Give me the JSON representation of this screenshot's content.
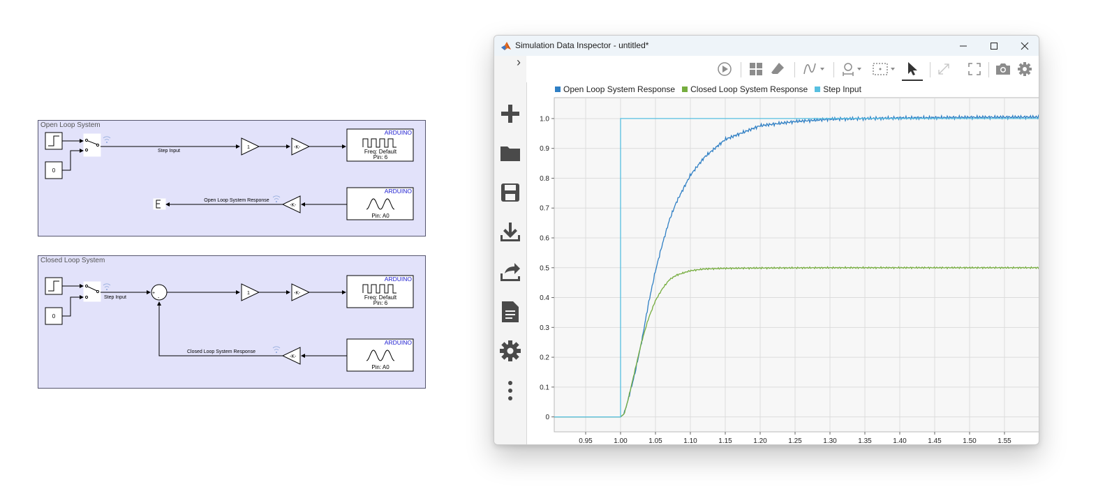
{
  "model": {
    "open_loop": {
      "title": "Open Loop System",
      "constant_value": "0",
      "signal_label": "Step Input",
      "gain1": "1",
      "gain2": "-K-",
      "out_block": {
        "brand": "ARDUINO",
        "line1": "Freq: Default",
        "line2": "Pin: 6"
      },
      "in_block": {
        "brand": "ARDUINO",
        "line2": "Pin: A0"
      },
      "feedback_gain": "-K-",
      "feedback_label": "Open Loop System Response"
    },
    "closed_loop": {
      "title": "Closed Loop System",
      "constant_value": "0",
      "signal_label": "Step Input",
      "sum_plus": "+",
      "sum_minus": "-",
      "gain1": "1",
      "gain2": "-K-",
      "out_block": {
        "brand": "ARDUINO",
        "line1": "Freq: Default",
        "line2": "Pin: 6"
      },
      "in_block": {
        "brand": "ARDUINO",
        "line2": "Pin: A0"
      },
      "feedback_gain": "-K-",
      "feedback_label": "Closed Loop System Response"
    }
  },
  "sdi": {
    "window_title": "Simulation Data Inspector - untitled*",
    "collapse_glyph": "›",
    "toolbar_icons": [
      "play-icon",
      "layout-grid-icon",
      "eraser-icon",
      "signal-wave-icon",
      "zoom-icon",
      "fit-to-view-icon",
      "cursor-icon",
      "expand-icon",
      "fullscreen-icon",
      "camera-icon",
      "gear-icon"
    ],
    "side_icons": [
      "add-icon",
      "folder-icon",
      "save-icon",
      "download-icon",
      "share-icon",
      "document-icon",
      "settings-icon",
      "more-icon"
    ],
    "colors": {
      "open_loop": "#2f7fc4",
      "closed_loop": "#76ad3f",
      "step": "#57bfe0"
    }
  },
  "chart_data": {
    "type": "line",
    "title": "",
    "xlabel": "",
    "ylabel": "",
    "xlim": [
      0.905,
      1.6
    ],
    "ylim": [
      -0.05,
      1.07
    ],
    "xticks": [
      "0.95",
      "1.00",
      "1.05",
      "1.10",
      "1.15",
      "1.20",
      "1.25",
      "1.30",
      "1.35",
      "1.40",
      "1.45",
      "1.50",
      "1.55"
    ],
    "yticks": [
      "0",
      "0.1",
      "0.2",
      "0.3",
      "0.4",
      "0.5",
      "0.6",
      "0.7",
      "0.8",
      "0.9",
      "1.0"
    ],
    "grid": true,
    "legend": "top",
    "series": [
      {
        "name": "Open Loop System Response",
        "color": "#2f7fc4",
        "x": [
          0.905,
          1.0,
          1.005,
          1.01,
          1.02,
          1.03,
          1.04,
          1.05,
          1.06,
          1.07,
          1.08,
          1.1,
          1.12,
          1.15,
          1.2,
          1.25,
          1.3,
          1.4,
          1.5,
          1.6
        ],
        "y": [
          0,
          0,
          0.01,
          0.05,
          0.14,
          0.25,
          0.38,
          0.49,
          0.58,
          0.66,
          0.72,
          0.81,
          0.87,
          0.93,
          0.976,
          0.99,
          0.998,
          1.002,
          1.004,
          1.005
        ]
      },
      {
        "name": "Closed Loop System Response",
        "color": "#76ad3f",
        "x": [
          0.905,
          1.0,
          1.005,
          1.01,
          1.02,
          1.03,
          1.04,
          1.05,
          1.06,
          1.07,
          1.08,
          1.1,
          1.12,
          1.15,
          1.2,
          1.3,
          1.4,
          1.5,
          1.6
        ],
        "y": [
          0,
          0,
          0.01,
          0.05,
          0.15,
          0.25,
          0.33,
          0.39,
          0.43,
          0.46,
          0.475,
          0.49,
          0.496,
          0.498,
          0.499,
          0.5,
          0.5,
          0.5,
          0.5
        ]
      },
      {
        "name": "Step Input",
        "color": "#57bfe0",
        "x": [
          0.905,
          1.0,
          1.0,
          1.6
        ],
        "y": [
          0,
          0,
          1,
          1
        ]
      }
    ]
  }
}
